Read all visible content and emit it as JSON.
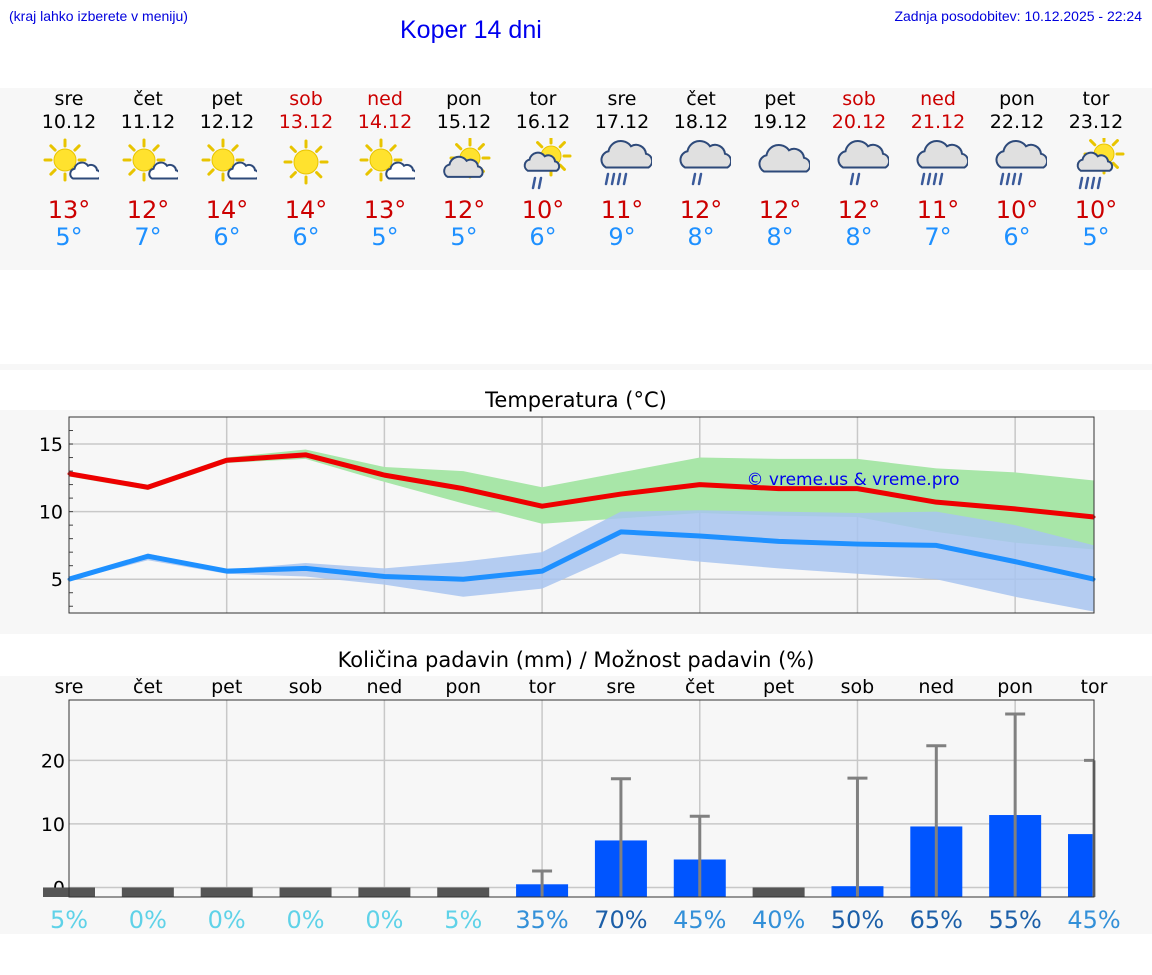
{
  "header": {
    "menu_hint": "(kraj lahko izberete v meniju)",
    "title": "Koper 14 dni",
    "updated": "Zadnja posodobitev: 10.12.2025 - 22:24"
  },
  "days": [
    {
      "name": "sre",
      "date": "10.12",
      "icon": "sun-cloud-icon",
      "tmax": "13°",
      "tmin": "5°",
      "weekend": false
    },
    {
      "name": "čet",
      "date": "11.12",
      "icon": "sun-cloud-icon",
      "tmax": "12°",
      "tmin": "7°",
      "weekend": false
    },
    {
      "name": "pet",
      "date": "12.12",
      "icon": "sun-cloud-icon",
      "tmax": "14°",
      "tmin": "6°",
      "weekend": false
    },
    {
      "name": "sob",
      "date": "13.12",
      "icon": "sun-icon",
      "tmax": "14°",
      "tmin": "6°",
      "weekend": true
    },
    {
      "name": "ned",
      "date": "14.12",
      "icon": "sun-cloud-icon",
      "tmax": "13°",
      "tmin": "5°",
      "weekend": true
    },
    {
      "name": "pon",
      "date": "15.12",
      "icon": "sun-behind-cloud-icon",
      "tmax": "12°",
      "tmin": "5°",
      "weekend": false
    },
    {
      "name": "tor",
      "date": "16.12",
      "icon": "sun-cloud-rain-icon",
      "tmax": "10°",
      "tmin": "6°",
      "weekend": false
    },
    {
      "name": "sre",
      "date": "17.12",
      "icon": "cloud-heavy-rain-icon",
      "tmax": "11°",
      "tmin": "9°",
      "weekend": false
    },
    {
      "name": "čet",
      "date": "18.12",
      "icon": "cloud-rain-icon",
      "tmax": "12°",
      "tmin": "8°",
      "weekend": false
    },
    {
      "name": "pet",
      "date": "19.12",
      "icon": "cloud-icon",
      "tmax": "12°",
      "tmin": "8°",
      "weekend": false
    },
    {
      "name": "sob",
      "date": "20.12",
      "icon": "cloud-rain-icon",
      "tmax": "12°",
      "tmin": "8°",
      "weekend": true
    },
    {
      "name": "ned",
      "date": "21.12",
      "icon": "cloud-heavy-rain-icon",
      "tmax": "11°",
      "tmin": "7°",
      "weekend": true
    },
    {
      "name": "pon",
      "date": "22.12",
      "icon": "cloud-heavy-rain-icon",
      "tmax": "10°",
      "tmin": "6°",
      "weekend": false
    },
    {
      "name": "tor",
      "date": "23.12",
      "icon": "sun-cloud-heavy-rain-icon",
      "tmax": "10°",
      "tmin": "5°",
      "weekend": false
    }
  ],
  "colors": {
    "max_line": "#ee0000",
    "min_line": "#1e90ff",
    "max_band": "#a8e6a8",
    "min_band": "#a8c4f0",
    "overlap_band": "#7fc8a8",
    "precip_bar": "#0055ff",
    "error_bar": "#808080",
    "grid": "#c8c8c8"
  },
  "chart_data": [
    {
      "type": "line",
      "title": "Temperatura (°C)",
      "watermark": "© vreme.us & vreme.pro",
      "x": [
        0,
        1,
        2,
        3,
        4,
        5,
        6,
        7,
        8,
        9,
        10,
        11,
        12,
        13
      ],
      "ylim": [
        2.5,
        17
      ],
      "yticks": [
        5,
        10,
        15
      ],
      "series": [
        {
          "name": "max",
          "values": [
            12.8,
            11.8,
            13.8,
            14.2,
            12.7,
            11.7,
            10.4,
            11.3,
            12.0,
            11.7,
            11.7,
            10.7,
            10.2,
            9.6
          ],
          "band_low": [
            12.6,
            11.6,
            13.6,
            13.9,
            12.2,
            10.6,
            9.1,
            9.5,
            9.9,
            9.7,
            9.6,
            8.5,
            7.7,
            7.2
          ],
          "band_high": [
            12.9,
            12.0,
            14.0,
            14.6,
            13.3,
            13.0,
            11.8,
            12.9,
            14.0,
            13.9,
            13.9,
            13.2,
            12.9,
            12.3
          ]
        },
        {
          "name": "min",
          "values": [
            5.0,
            6.7,
            5.6,
            5.8,
            5.2,
            5.0,
            5.6,
            8.5,
            8.2,
            7.8,
            7.6,
            7.5,
            6.3,
            5.0
          ],
          "band_low": [
            4.9,
            6.4,
            5.4,
            5.2,
            4.6,
            3.7,
            4.3,
            6.9,
            6.3,
            5.8,
            5.4,
            5.0,
            3.7,
            2.6
          ],
          "band_high": [
            5.1,
            6.9,
            5.7,
            6.2,
            5.8,
            6.3,
            7.0,
            10.0,
            10.1,
            10.0,
            9.9,
            10.0,
            9.0,
            7.5
          ]
        }
      ]
    },
    {
      "type": "bar",
      "title": "Količina padavin (mm) / Možnost padavin (%)",
      "categories": [
        "sre",
        "čet",
        "pet",
        "sob",
        "ned",
        "pon",
        "tor",
        "sre",
        "čet",
        "pet",
        "sob",
        "ned",
        "pon",
        "tor"
      ],
      "ylim": [
        -1.5,
        29.5
      ],
      "yticks": [
        0,
        10,
        20
      ],
      "values": [
        0,
        0,
        0,
        0,
        0,
        0,
        0.5,
        7.4,
        4.4,
        0,
        0.2,
        9.6,
        11.4,
        8.4
      ],
      "error_high": [
        0,
        0,
        0,
        0,
        0,
        0,
        2.6,
        17.1,
        11.2,
        0,
        17.2,
        22.3,
        27.3,
        20.0
      ],
      "probability": [
        "5%",
        "0%",
        "0%",
        "0%",
        "0%",
        "5%",
        "35%",
        "70%",
        "45%",
        "40%",
        "50%",
        "65%",
        "55%",
        "45%"
      ],
      "probability_values": [
        5,
        0,
        0,
        0,
        0,
        5,
        35,
        70,
        45,
        40,
        50,
        65,
        55,
        45
      ]
    }
  ]
}
